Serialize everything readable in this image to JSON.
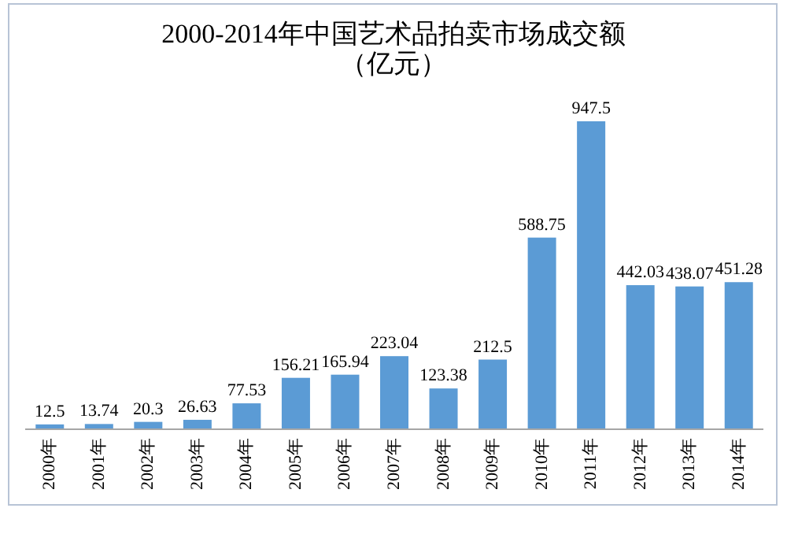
{
  "chart_data": {
    "type": "bar",
    "title": "2000-2014年中国艺术品拍卖市场成交额",
    "subtitle": "（亿元）",
    "categories": [
      "2000年",
      "2001年",
      "2002年",
      "2003年",
      "2004年",
      "2005年",
      "2006年",
      "2007年",
      "2008年",
      "2009年",
      "2010年",
      "2011年",
      "2012年",
      "2013年",
      "2014年"
    ],
    "values": [
      12.5,
      13.74,
      20.3,
      26.63,
      77.53,
      156.21,
      165.94,
      223.04,
      123.38,
      212.5,
      588.75,
      947.5,
      442.03,
      438.07,
      451.28
    ],
    "color": "#5b9bd5",
    "data_labels": true,
    "relative": false
  }
}
